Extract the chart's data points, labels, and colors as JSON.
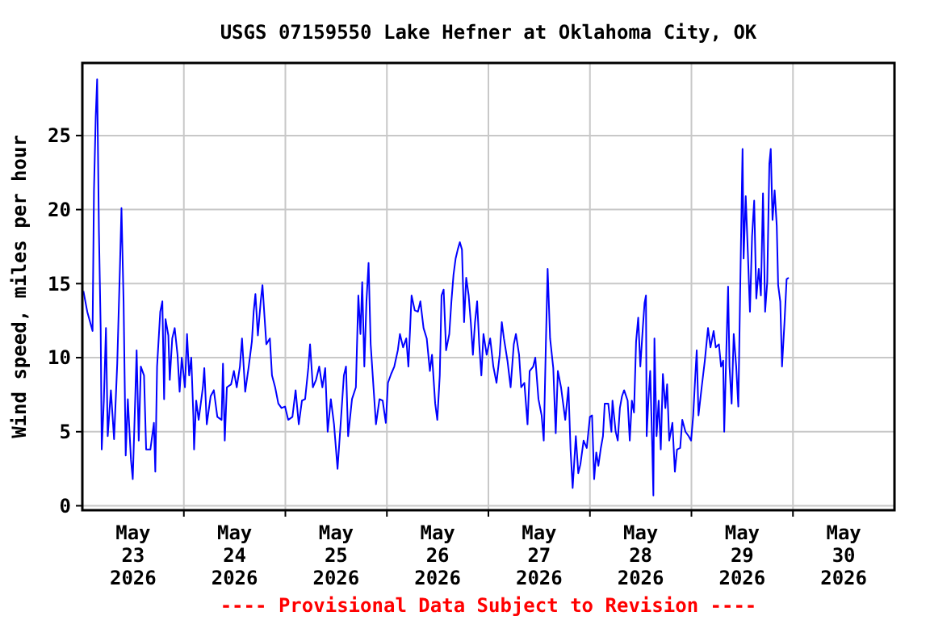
{
  "chart_data": {
    "type": "line",
    "title": "USGS 07159550 Lake Hefner at Oklahoma City, OK",
    "ylabel": "Wind speed, miles per hour",
    "annotations": [
      "---- Provisional Data Subject to Revision ----"
    ],
    "xlim": [
      "2026-05-23T00:00",
      "2026-05-31T00:00"
    ],
    "xticks": [
      {
        "value": "2026-05-23T12:00",
        "label": "May\n23\n2026"
      },
      {
        "value": "2026-05-24T00:00",
        "label": null
      },
      {
        "value": "2026-05-24T12:00",
        "label": "May\n24\n2026"
      },
      {
        "value": "2026-05-25T00:00",
        "label": null
      },
      {
        "value": "2026-05-25T12:00",
        "label": "May\n25\n2026"
      },
      {
        "value": "2026-05-26T00:00",
        "label": null
      },
      {
        "value": "2026-05-26T12:00",
        "label": "May\n26\n2026"
      },
      {
        "value": "2026-05-27T00:00",
        "label": null
      },
      {
        "value": "2026-05-27T12:00",
        "label": "May\n27\n2026"
      },
      {
        "value": "2026-05-28T00:00",
        "label": null
      },
      {
        "value": "2026-05-28T12:00",
        "label": "May\n28\n2026"
      },
      {
        "value": "2026-05-29T00:00",
        "label": null
      },
      {
        "value": "2026-05-29T12:00",
        "label": "May\n29\n2026"
      },
      {
        "value": "2026-05-30T00:00",
        "label": null
      },
      {
        "value": "2026-05-30T12:00",
        "label": "May\n30\n2026"
      }
    ],
    "ylim": [
      -0.3,
      29.9
    ],
    "yticks": [
      0,
      5,
      10,
      15,
      20,
      25
    ],
    "grid": true,
    "marker": "none",
    "line_style": "solid",
    "series": [
      {
        "color": "#0000ff",
        "x": [
          "2026-05-23T00:15",
          "2026-05-23T01:10",
          "2026-05-23T02:25",
          "2026-05-23T02:45",
          "2026-05-23T03:10",
          "2026-05-23T03:30",
          "2026-05-23T03:55",
          "2026-05-23T04:20",
          "2026-05-23T04:35",
          "2026-05-23T05:05",
          "2026-05-23T05:35",
          "2026-05-23T06:00",
          "2026-05-23T06:45",
          "2026-05-23T07:30",
          "2026-05-23T08:15",
          "2026-05-23T08:55",
          "2026-05-23T09:15",
          "2026-05-23T09:45",
          "2026-05-23T10:15",
          "2026-05-23T10:45",
          "2026-05-23T11:30",
          "2026-05-23T11:55",
          "2026-05-23T12:30",
          "2026-05-23T12:50",
          "2026-05-23T13:20",
          "2026-05-23T13:50",
          "2026-05-23T14:35",
          "2026-05-23T15:05",
          "2026-05-23T16:05",
          "2026-05-23T16:55",
          "2026-05-23T17:15",
          "2026-05-23T17:40",
          "2026-05-23T18:25",
          "2026-05-23T18:55",
          "2026-05-23T19:20",
          "2026-05-23T19:40",
          "2026-05-23T20:20",
          "2026-05-23T20:40",
          "2026-05-23T21:15",
          "2026-05-23T21:50",
          "2026-05-23T22:30",
          "2026-05-23T23:00",
          "2026-05-23T23:30",
          "2026-05-24T00:15",
          "2026-05-24T00:45",
          "2026-05-24T01:15",
          "2026-05-24T01:45",
          "2026-05-24T02:15",
          "2026-05-24T02:25",
          "2026-05-24T02:55",
          "2026-05-24T03:30",
          "2026-05-24T04:30",
          "2026-05-24T04:50",
          "2026-05-24T05:25",
          "2026-05-24T06:20",
          "2026-05-24T07:05",
          "2026-05-24T07:55",
          "2026-05-24T08:55",
          "2026-05-24T09:15",
          "2026-05-24T09:40",
          "2026-05-24T10:10",
          "2026-05-24T11:10",
          "2026-05-24T11:50",
          "2026-05-24T12:30",
          "2026-05-24T13:15",
          "2026-05-24T13:45",
          "2026-05-24T14:30",
          "2026-05-24T15:20",
          "2026-05-24T16:05",
          "2026-05-24T16:30",
          "2026-05-24T16:55",
          "2026-05-24T17:30",
          "2026-05-24T18:10",
          "2026-05-24T18:35",
          "2026-05-24T19:05",
          "2026-05-24T19:30",
          "2026-05-24T20:20",
          "2026-05-24T20:50",
          "2026-05-24T21:35",
          "2026-05-24T22:20",
          "2026-05-24T23:05",
          "2026-05-24T23:55",
          "2026-05-25T00:40",
          "2026-05-25T01:40",
          "2026-05-25T02:25",
          "2026-05-25T03:10",
          "2026-05-25T03:55",
          "2026-05-25T04:40",
          "2026-05-25T05:25",
          "2026-05-25T05:50",
          "2026-05-25T06:30",
          "2026-05-25T07:15",
          "2026-05-25T08:00",
          "2026-05-25T08:45",
          "2026-05-25T09:25",
          "2026-05-25T10:00",
          "2026-05-25T10:45",
          "2026-05-25T11:30",
          "2026-05-25T12:20",
          "2026-05-25T13:05",
          "2026-05-25T13:50",
          "2026-05-25T14:20",
          "2026-05-25T14:50",
          "2026-05-25T15:45",
          "2026-05-25T16:40",
          "2026-05-25T17:15",
          "2026-05-25T17:45",
          "2026-05-25T18:10",
          "2026-05-25T18:40",
          "2026-05-25T19:10",
          "2026-05-25T19:40",
          "2026-05-25T20:10",
          "2026-05-25T20:50",
          "2026-05-25T21:25",
          "2026-05-25T22:15",
          "2026-05-25T23:00",
          "2026-05-25T23:45",
          "2026-05-26T00:15",
          "2026-05-26T01:00",
          "2026-05-26T01:45",
          "2026-05-26T02:35",
          "2026-05-26T03:05",
          "2026-05-26T03:50",
          "2026-05-26T04:35",
          "2026-05-26T05:05",
          "2026-05-26T05:50",
          "2026-05-26T06:35",
          "2026-05-26T07:20",
          "2026-05-26T07:55",
          "2026-05-26T08:40",
          "2026-05-26T09:25",
          "2026-05-26T10:10",
          "2026-05-26T10:40",
          "2026-05-26T11:25",
          "2026-05-26T11:55",
          "2026-05-26T12:30",
          "2026-05-26T12:55",
          "2026-05-26T13:25",
          "2026-05-26T14:00",
          "2026-05-26T14:45",
          "2026-05-26T15:15",
          "2026-05-26T15:45",
          "2026-05-26T16:15",
          "2026-05-26T16:45",
          "2026-05-26T17:15",
          "2026-05-26T17:45",
          "2026-05-26T18:15",
          "2026-05-26T18:45",
          "2026-05-26T19:20",
          "2026-05-26T19:50",
          "2026-05-26T20:20",
          "2026-05-26T20:50",
          "2026-05-26T21:20",
          "2026-05-26T21:50",
          "2026-05-26T22:20",
          "2026-05-26T22:50",
          "2026-05-26T23:35",
          "2026-05-27T00:25",
          "2026-05-27T01:10",
          "2026-05-27T01:55",
          "2026-05-27T02:40",
          "2026-05-27T03:10",
          "2026-05-27T03:40",
          "2026-05-27T04:30",
          "2026-05-27T05:15",
          "2026-05-27T06:00",
          "2026-05-27T06:30",
          "2026-05-27T07:15",
          "2026-05-27T07:45",
          "2026-05-27T08:30",
          "2026-05-27T09:15",
          "2026-05-27T09:45",
          "2026-05-27T10:35",
          "2026-05-27T11:05",
          "2026-05-27T11:50",
          "2026-05-27T12:35",
          "2026-05-27T13:05",
          "2026-05-27T13:35",
          "2026-05-27T14:00",
          "2026-05-27T14:35",
          "2026-05-27T15:20",
          "2026-05-27T15:55",
          "2026-05-27T16:25",
          "2026-05-27T17:10",
          "2026-05-27T18:10",
          "2026-05-27T18:55",
          "2026-05-27T19:25",
          "2026-05-27T19:55",
          "2026-05-27T20:40",
          "2026-05-27T21:15",
          "2026-05-27T21:45",
          "2026-05-27T22:30",
          "2026-05-27T23:15",
          "2026-05-28T00:00",
          "2026-05-28T00:30",
          "2026-05-28T01:00",
          "2026-05-28T01:30",
          "2026-05-28T02:00",
          "2026-05-28T02:35",
          "2026-05-28T03:05",
          "2026-05-28T03:30",
          "2026-05-28T04:20",
          "2026-05-28T05:05",
          "2026-05-28T05:20",
          "2026-05-28T06:05",
          "2026-05-28T06:35",
          "2026-05-28T07:05",
          "2026-05-28T07:35",
          "2026-05-28T08:05",
          "2026-05-28T08:55",
          "2026-05-28T09:25",
          "2026-05-28T09:55",
          "2026-05-28T10:25",
          "2026-05-28T10:55",
          "2026-05-28T11:25",
          "2026-05-28T11:55",
          "2026-05-28T12:30",
          "2026-05-28T12:55",
          "2026-05-28T13:15",
          "2026-05-28T13:25",
          "2026-05-28T13:50",
          "2026-05-28T14:15",
          "2026-05-28T14:45",
          "2026-05-28T15:00",
          "2026-05-28T15:15",
          "2026-05-28T15:45",
          "2026-05-28T16:15",
          "2026-05-28T16:45",
          "2026-05-28T17:15",
          "2026-05-28T17:50",
          "2026-05-28T18:15",
          "2026-05-28T18:45",
          "2026-05-28T19:30",
          "2026-05-28T20:05",
          "2026-05-28T20:35",
          "2026-05-28T21:20",
          "2026-05-28T21:50",
          "2026-05-28T22:35",
          "2026-05-28T23:20",
          "2026-05-28T23:55",
          "2026-05-29T00:25",
          "2026-05-29T00:55",
          "2026-05-29T01:15",
          "2026-05-29T01:40",
          "2026-05-29T02:25",
          "2026-05-29T03:10",
          "2026-05-29T03:55",
          "2026-05-29T04:30",
          "2026-05-29T05:15",
          "2026-05-29T05:45",
          "2026-05-29T06:30",
          "2026-05-29T07:00",
          "2026-05-29T07:30",
          "2026-05-29T07:45",
          "2026-05-29T08:15",
          "2026-05-29T08:40",
          "2026-05-29T09:00",
          "2026-05-29T09:30",
          "2026-05-29T10:00",
          "2026-05-29T10:35",
          "2026-05-29T11:05",
          "2026-05-29T11:30",
          "2026-05-29T12:05",
          "2026-05-29T12:20",
          "2026-05-29T12:50",
          "2026-05-29T13:20",
          "2026-05-29T13:50",
          "2026-05-29T14:20",
          "2026-05-29T14:50",
          "2026-05-29T15:20",
          "2026-05-29T15:55",
          "2026-05-29T16:25",
          "2026-05-29T16:55",
          "2026-05-29T17:25",
          "2026-05-29T17:55",
          "2026-05-29T18:25",
          "2026-05-29T18:45",
          "2026-05-29T19:10",
          "2026-05-29T19:40",
          "2026-05-29T20:10",
          "2026-05-29T20:30",
          "2026-05-29T21:00",
          "2026-05-29T21:25",
          "2026-05-29T22:00",
          "2026-05-29T22:30",
          "2026-05-29T23:00"
        ],
        "values": [
          14.5,
          13.1,
          11.8,
          21.3,
          26.3,
          28.8,
          18.6,
          12.0,
          3.8,
          7.1,
          12.0,
          4.7,
          7.8,
          4.5,
          9.6,
          16.4,
          20.1,
          13.8,
          3.4,
          7.2,
          3.1,
          1.8,
          7.2,
          10.5,
          4.4,
          9.4,
          8.8,
          3.8,
          3.8,
          5.6,
          2.3,
          9.4,
          13.1,
          13.8,
          7.2,
          12.6,
          11.5,
          8.5,
          11.3,
          12.0,
          10.2,
          7.7,
          10.0,
          8.0,
          11.6,
          8.8,
          10.0,
          6.0,
          3.8,
          7.1,
          5.8,
          8.0,
          9.3,
          5.5,
          7.4,
          7.8,
          6.0,
          5.8,
          9.6,
          4.4,
          8.0,
          8.2,
          9.1,
          8.0,
          9.4,
          11.3,
          7.7,
          9.4,
          11.1,
          13.1,
          14.3,
          11.5,
          13.8,
          14.9,
          12.7,
          10.9,
          11.3,
          8.8,
          8.0,
          6.9,
          6.6,
          6.7,
          5.8,
          6.0,
          7.8,
          5.5,
          7.1,
          7.2,
          9.3,
          10.9,
          8.0,
          8.5,
          9.4,
          8.0,
          9.3,
          5.0,
          7.2,
          5.5,
          2.5,
          5.6,
          8.8,
          9.4,
          4.7,
          7.2,
          8.0,
          14.2,
          11.6,
          15.1,
          9.4,
          13.8,
          16.4,
          10.9,
          8.0,
          5.5,
          7.2,
          7.1,
          5.6,
          8.3,
          8.9,
          9.4,
          10.5,
          11.6,
          10.7,
          11.3,
          9.4,
          14.2,
          13.2,
          13.1,
          13.8,
          12.0,
          11.3,
          9.1,
          10.2,
          6.9,
          5.8,
          8.8,
          14.2,
          14.6,
          10.5,
          11.6,
          13.8,
          15.6,
          16.7,
          17.3,
          17.8,
          17.3,
          12.4,
          15.4,
          14.2,
          12.4,
          10.2,
          12.4,
          13.8,
          10.9,
          8.8,
          11.6,
          10.2,
          11.3,
          9.4,
          8.3,
          10.2,
          12.4,
          11.3,
          9.8,
          8.0,
          10.9,
          11.6,
          10.2,
          8.0,
          8.3,
          5.5,
          9.1,
          9.4,
          10.0,
          7.2,
          6.1,
          4.4,
          10.9,
          16.0,
          11.3,
          9.3,
          4.9,
          9.1,
          8.0,
          5.8,
          8.0,
          3.8,
          1.2,
          4.7,
          2.2,
          2.8,
          4.4,
          3.9,
          6.0,
          6.1,
          1.8,
          3.6,
          2.7,
          3.9,
          4.7,
          6.9,
          6.9,
          5.0,
          7.1,
          5.0,
          4.4,
          6.6,
          7.4,
          7.8,
          7.1,
          4.4,
          7.1,
          6.3,
          11.1,
          12.7,
          9.4,
          12.0,
          13.7,
          14.2,
          4.7,
          7.2,
          9.1,
          3.8,
          0.7,
          11.3,
          4.7,
          7.1,
          3.8,
          8.9,
          6.6,
          8.2,
          4.4,
          5.6,
          2.3,
          3.8,
          3.9,
          5.8,
          5.0,
          4.7,
          4.4,
          6.1,
          8.8,
          10.5,
          6.1,
          8.0,
          9.8,
          12.0,
          10.7,
          11.8,
          10.7,
          10.9,
          9.4,
          9.8,
          5.0,
          10.5,
          14.8,
          9.4,
          6.9,
          11.6,
          9.4,
          6.7,
          14.2,
          24.1,
          16.7,
          20.9,
          17.1,
          13.1,
          18.2,
          20.6,
          14.0,
          16.0,
          14.2,
          21.1,
          13.1,
          15.1,
          23.1,
          24.1,
          19.3,
          21.3,
          18.9,
          14.9,
          13.8,
          9.4,
          12.4,
          15.3,
          15.4
        ]
      }
    ]
  }
}
